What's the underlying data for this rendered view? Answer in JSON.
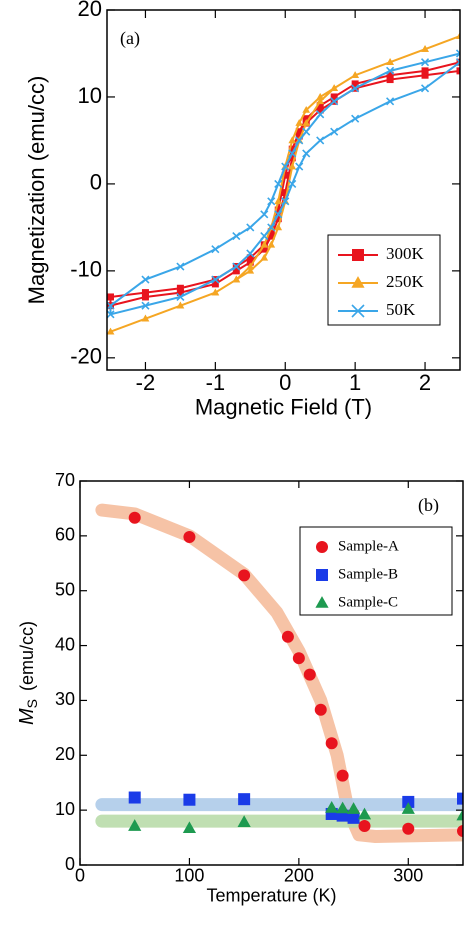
{
  "chart_data": [
    {
      "type": "line",
      "panel_label": "(a)",
      "x_label": "Magnetic Field (T)",
      "y_label": "Magnetization (emu/cc)",
      "xlim": [
        -2.55,
        2.5
      ],
      "ylim": [
        -21.4,
        20
      ],
      "xticks": [
        -2,
        -1,
        0,
        1,
        2
      ],
      "yticks": [
        -20,
        -10,
        0,
        10,
        20
      ],
      "legend": "lower right",
      "x": [
        2.5,
        2,
        1.5,
        1,
        0.7,
        0.5,
        0.3,
        0.2,
        0.1,
        0,
        -0.1,
        -0.2,
        -0.3,
        -0.5,
        -0.7,
        -1,
        -1.5,
        -2,
        -2.5,
        -2.5,
        -2,
        -1.5,
        -1,
        -0.7,
        -0.5,
        -0.3,
        -0.2,
        -0.1,
        0,
        0.1,
        0.2,
        0.3,
        0.5,
        0.7,
        1,
        1.5,
        2,
        2.5
      ],
      "series": [
        {
          "name": "300K",
          "color": "#e8141e",
          "marker": "square",
          "values": [
            14,
            13,
            12.5,
            11.5,
            10,
            9,
            7.5,
            6,
            4,
            1,
            -3,
            -5.5,
            -7,
            -8.5,
            -9.5,
            -11,
            -12,
            -12.5,
            -13,
            -14,
            -13,
            -12.5,
            -11.5,
            -10,
            -9,
            -7.5,
            -6,
            -4,
            -1,
            3,
            5.5,
            7,
            8.5,
            9.5,
            11,
            12,
            12.5,
            13
          ]
        },
        {
          "name": "250K",
          "color": "#f5a623",
          "marker": "triangle",
          "values": [
            17,
            15.5,
            14,
            12.5,
            11,
            10,
            8.5,
            7,
            5,
            2,
            -2,
            -5,
            -7,
            -9.5,
            -11,
            -12.5,
            -14,
            -15.5,
            -17,
            -17,
            -15.5,
            -14,
            -12.5,
            -11,
            -10,
            -8.5,
            -7,
            -5,
            -2,
            2,
            5,
            7,
            9.5,
            11,
            12.5,
            14,
            15.5,
            17
          ]
        },
        {
          "name": "50K",
          "color": "#3aa6e8",
          "marker": "x",
          "values": [
            15,
            14,
            13,
            11,
            9.5,
            8,
            6,
            5,
            3.5,
            2,
            0,
            -2,
            -3.5,
            -5,
            -6,
            -7.5,
            -9.5,
            -11,
            -14,
            -15,
            -14,
            -13,
            -11,
            -9.5,
            -8,
            -6,
            -5,
            -3.5,
            -2,
            0,
            2,
            3.5,
            5,
            6,
            7.5,
            9.5,
            11,
            14
          ]
        }
      ]
    },
    {
      "type": "scatter",
      "panel_label": "(b)",
      "x_label": "Temperature (K)",
      "y_label": "M",
      "y_label_subscript": "S",
      "y_label_unit": "(emu/cc)",
      "xlim": [
        0,
        350
      ],
      "ylim": [
        0,
        70
      ],
      "xticks": [
        0,
        100,
        200,
        300
      ],
      "yticks": [
        0,
        10,
        20,
        30,
        40,
        50,
        60,
        70
      ],
      "legend": "upper right",
      "series": [
        {
          "name": "Sample-A",
          "color": "#e8141e",
          "marker": "circle",
          "x": [
            50,
            100,
            150,
            190,
            200,
            210,
            220,
            230,
            240,
            250,
            260,
            300,
            350
          ],
          "values": [
            63.3,
            59.8,
            52.8,
            41.6,
            37.7,
            34.7,
            28.3,
            22.2,
            16.3,
            9.3,
            7.1,
            6.6,
            6.2
          ]
        },
        {
          "name": "Sample-B",
          "color": "#1a3be8",
          "marker": "square",
          "x": [
            50,
            100,
            150,
            230,
            240,
            250,
            300,
            350
          ],
          "values": [
            12.3,
            11.9,
            12,
            9.3,
            9,
            8.6,
            11.5,
            12.1
          ]
        },
        {
          "name": "Sample-C",
          "color": "#1e9a50",
          "marker": "triangle",
          "x": [
            50,
            100,
            150,
            230,
            240,
            250,
            260,
            300,
            350
          ],
          "values": [
            7.1,
            6.7,
            7.8,
            10.4,
            10.3,
            10.2,
            9.2,
            10.2,
            9
          ]
        }
      ],
      "guides": [
        {
          "color": "#f4b896",
          "x": [
            20,
            50,
            100,
            150,
            180,
            200,
            220,
            235,
            245,
            255,
            270,
            300,
            350
          ],
          "values": [
            64.7,
            64,
            60,
            53,
            46,
            39,
            30,
            20,
            10,
            5.5,
            5.2,
            5.3,
            5.5
          ]
        },
        {
          "color": "#a9c8e8",
          "x": [
            20,
            350
          ],
          "values": [
            11,
            11
          ]
        },
        {
          "color": "#b5d9a5",
          "x": [
            20,
            350
          ],
          "values": [
            8,
            8
          ]
        }
      ]
    }
  ]
}
